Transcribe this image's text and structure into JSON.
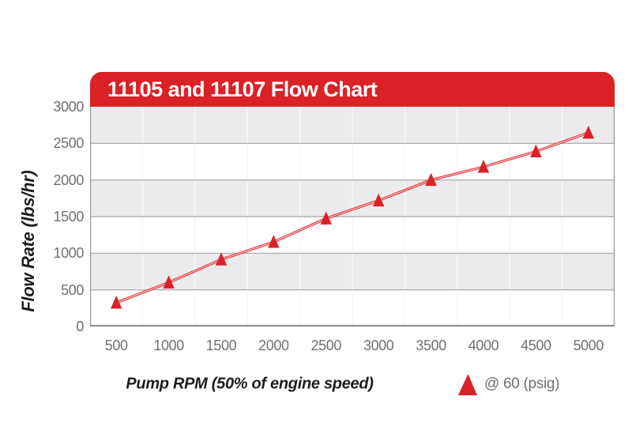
{
  "figure": {
    "title": "11105 and 11107 Flow Chart"
  },
  "axes": {
    "y_title": "Flow Rate (lbs/hr)",
    "x_title": "Pump RPM (50% of engine speed)"
  },
  "legend": {
    "marker": "red-triangle",
    "label": "@ 60 (psig)"
  },
  "colors": {
    "accent_red": "#DA2128",
    "line_red": "#E4333A",
    "line_core": "#FBD9DA",
    "band_gray": "#EBEBED",
    "band_white": "#FFFFFF",
    "grid_dark": "#A5A5A8",
    "grid_light": "#F7F7F9",
    "border_gray": "#97979A",
    "axis_line": "#8A8A8D",
    "tick_text": "#717174",
    "label_text": "#1D1D1F",
    "title_text": "#FFFFFF"
  },
  "chart_data": {
    "type": "line",
    "title": "11105 and 11107 Flow Chart",
    "xlabel": "Pump RPM (50% of engine speed)",
    "ylabel": "Flow Rate (lbs/hr)",
    "x": [
      500,
      1000,
      1500,
      2000,
      2500,
      3000,
      3500,
      4000,
      4500,
      5000
    ],
    "series": [
      {
        "name": "@ 60 (psig)",
        "marker": "red-triangle",
        "values": [
          325,
          600,
          915,
          1155,
          1475,
          1720,
          2000,
          2180,
          2390,
          2645
        ]
      }
    ],
    "x_ticks": [
      "500",
      "1000",
      "1500",
      "2000",
      "2500",
      "3000",
      "3500",
      "4000",
      "4500",
      "5000"
    ],
    "y_ticks": [
      "0",
      "500",
      "1000",
      "1500",
      "2000",
      "2500",
      "3000"
    ],
    "ylim": [
      0,
      3000
    ],
    "grid": "horizontal-bands-alternating",
    "legend_position": "bottom-right"
  }
}
